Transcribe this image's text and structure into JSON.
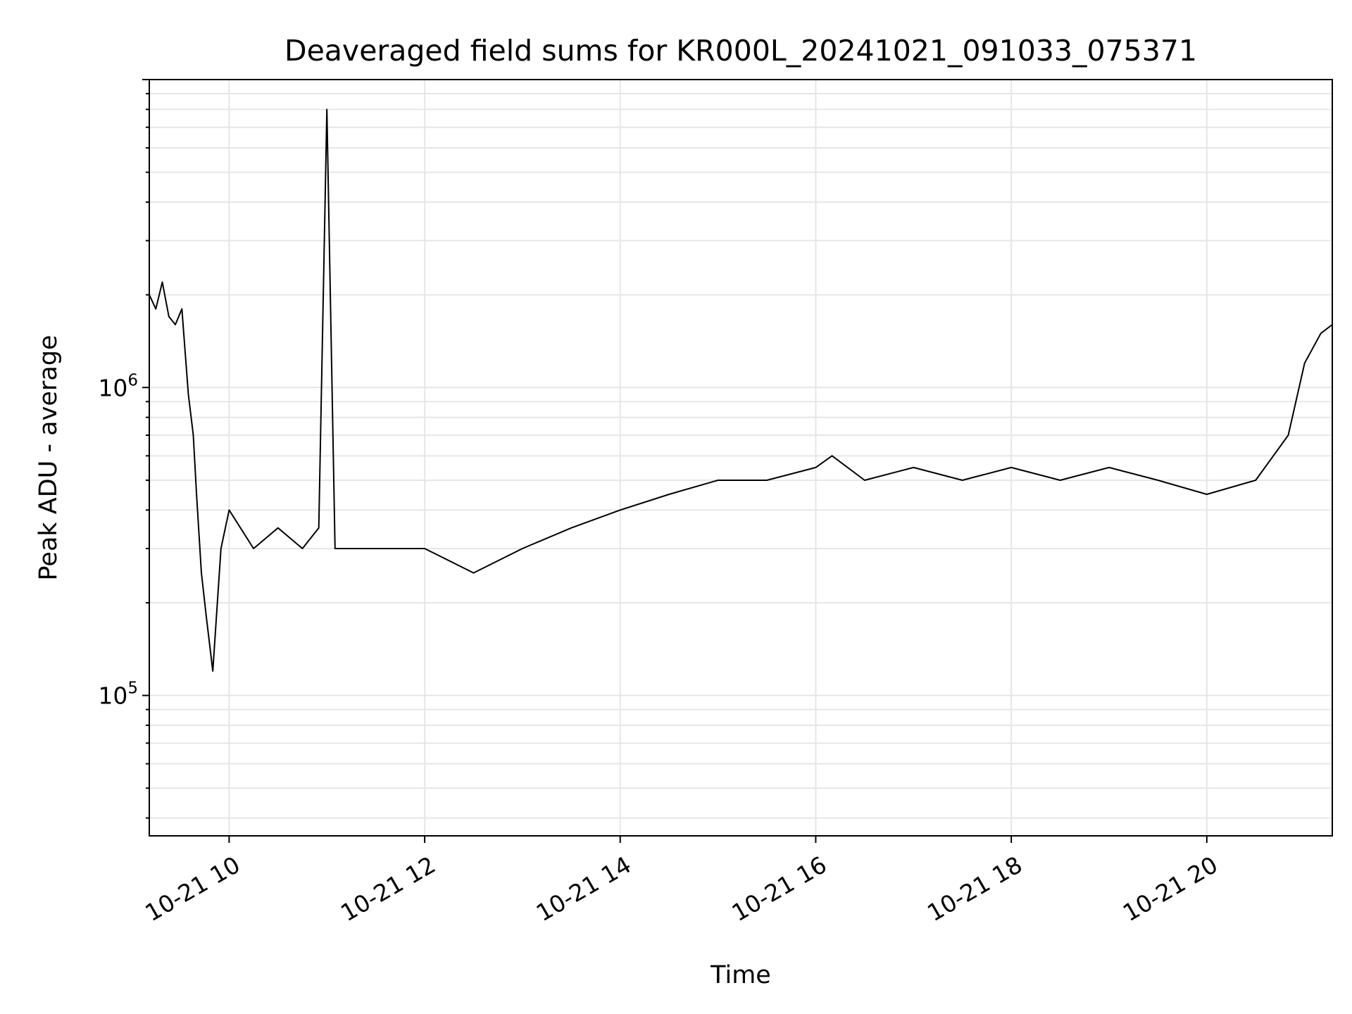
{
  "chart_data": {
    "type": "line",
    "title": "Deaveraged field sums for KR000L_20241021_091033_075371",
    "xlabel": "Time",
    "ylabel": "Peak ADU - average",
    "y_scale": "log",
    "grid": true,
    "line_color": "#000000",
    "grid_color": "#e6e6e6",
    "xlim": [
      "2024-10-21 09:11",
      "2024-10-21 21:17"
    ],
    "ylim": [
      35000,
      10000000
    ],
    "x_ticks": [
      {
        "value": "2024-10-21 10:00",
        "label": "10-21 10"
      },
      {
        "value": "2024-10-21 12:00",
        "label": "10-21 12"
      },
      {
        "value": "2024-10-21 14:00",
        "label": "10-21 14"
      },
      {
        "value": "2024-10-21 16:00",
        "label": "10-21 16"
      },
      {
        "value": "2024-10-21 18:00",
        "label": "10-21 18"
      },
      {
        "value": "2024-10-21 20:00",
        "label": "10-21 20"
      }
    ],
    "y_ticks": [
      {
        "value": 100000,
        "base": "10",
        "exponent": "5"
      },
      {
        "value": 1000000,
        "base": "10",
        "exponent": "6"
      }
    ],
    "series": [
      {
        "x": [
          "2024-10-21 09:11",
          "2024-10-21 09:15",
          "2024-10-21 09:19",
          "2024-10-21 09:23",
          "2024-10-21 09:27",
          "2024-10-21 09:31",
          "2024-10-21 09:35",
          "2024-10-21 09:38",
          "2024-10-21 09:40",
          "2024-10-21 09:43",
          "2024-10-21 09:46",
          "2024-10-21 09:50",
          "2024-10-21 09:55",
          "2024-10-21 10:00",
          "2024-10-21 10:15",
          "2024-10-21 10:30",
          "2024-10-21 10:45",
          "2024-10-21 10:55",
          "2024-10-21 11:00",
          "2024-10-21 11:05",
          "2024-10-21 11:30",
          "2024-10-21 12:00",
          "2024-10-21 12:30",
          "2024-10-21 13:00",
          "2024-10-21 13:30",
          "2024-10-21 14:00",
          "2024-10-21 14:30",
          "2024-10-21 15:00",
          "2024-10-21 15:30",
          "2024-10-21 16:00",
          "2024-10-21 16:10",
          "2024-10-21 16:30",
          "2024-10-21 17:00",
          "2024-10-21 17:30",
          "2024-10-21 18:00",
          "2024-10-21 18:30",
          "2024-10-21 19:00",
          "2024-10-21 19:30",
          "2024-10-21 20:00",
          "2024-10-21 20:30",
          "2024-10-21 20:50",
          "2024-10-21 21:00",
          "2024-10-21 21:10",
          "2024-10-21 21:17"
        ],
        "y": [
          2000000,
          1800000,
          2200000,
          1700000,
          1600000,
          1800000,
          950000,
          700000,
          450000,
          250000,
          180000,
          120000,
          300000,
          400000,
          300000,
          350000,
          300000,
          350000,
          8000000,
          300000,
          300000,
          300000,
          250000,
          300000,
          350000,
          400000,
          450000,
          500000,
          500000,
          550000,
          600000,
          500000,
          550000,
          500000,
          550000,
          500000,
          550000,
          500000,
          450000,
          500000,
          700000,
          1200000,
          1500000,
          1600000
        ]
      }
    ]
  }
}
